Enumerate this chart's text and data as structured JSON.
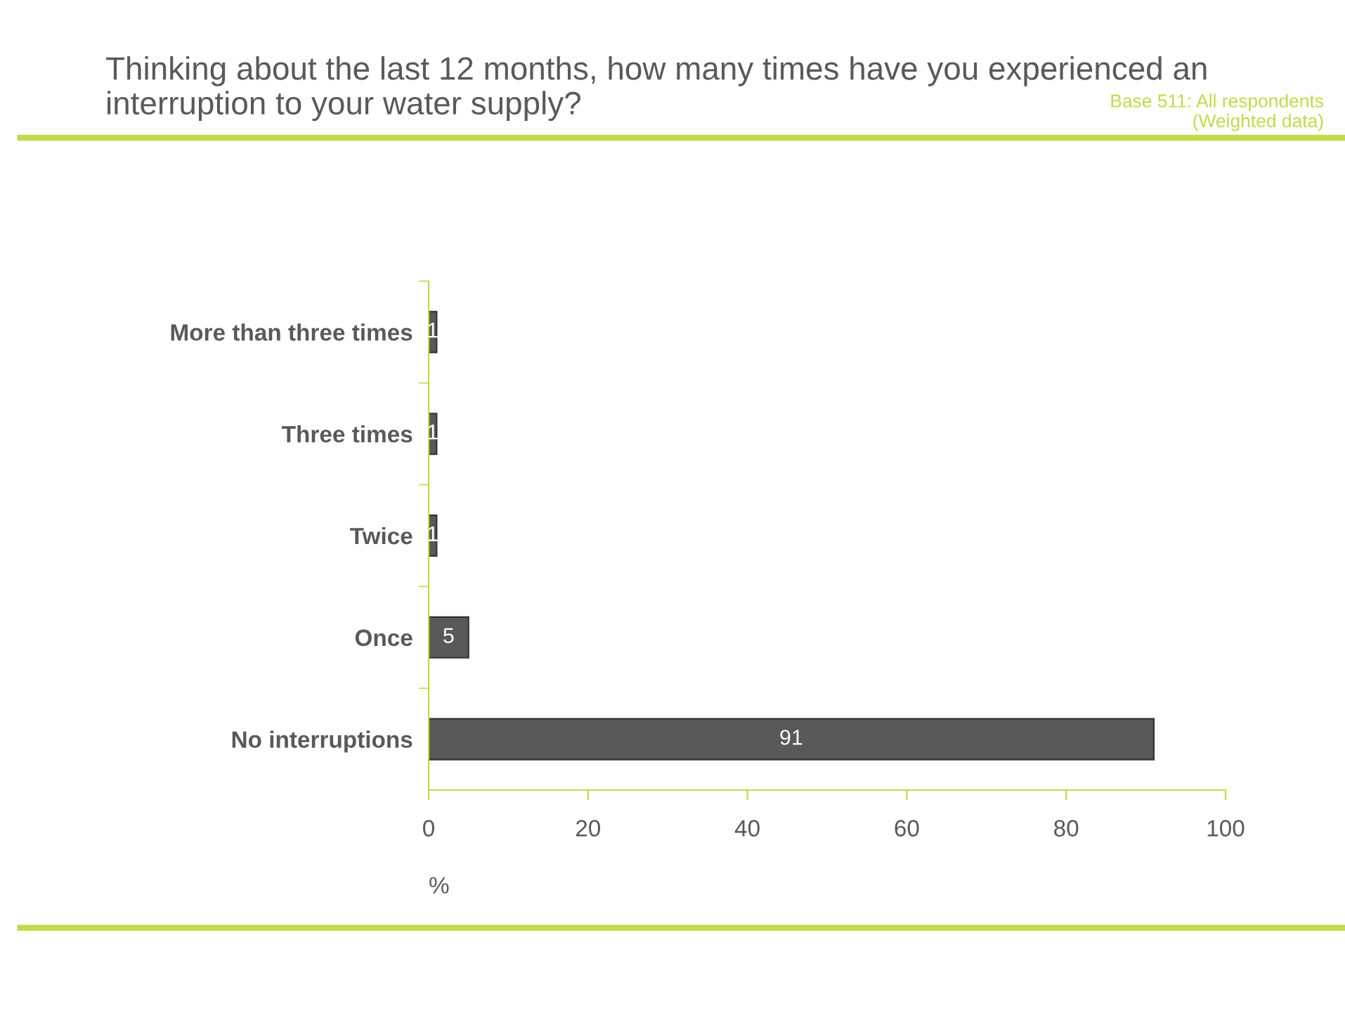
{
  "chart_data": {
    "type": "bar",
    "orientation": "horizontal",
    "title": "Thinking about the last 12 months, how many times have you experienced an interruption to your water supply?",
    "annotations": [
      "Base 511: All respondents\n(Weighted data)"
    ],
    "xlabel": "%",
    "categories": [
      "More than three times",
      "Three times",
      "Twice",
      "Once",
      "No interruptions"
    ],
    "values": [
      1,
      1,
      1,
      5,
      91
    ],
    "color": "#595959",
    "xlim": [
      0,
      100
    ],
    "xticks": [
      0,
      20,
      40,
      60,
      80,
      100
    ],
    "data_labels": true,
    "grid": false,
    "legend": false
  }
}
